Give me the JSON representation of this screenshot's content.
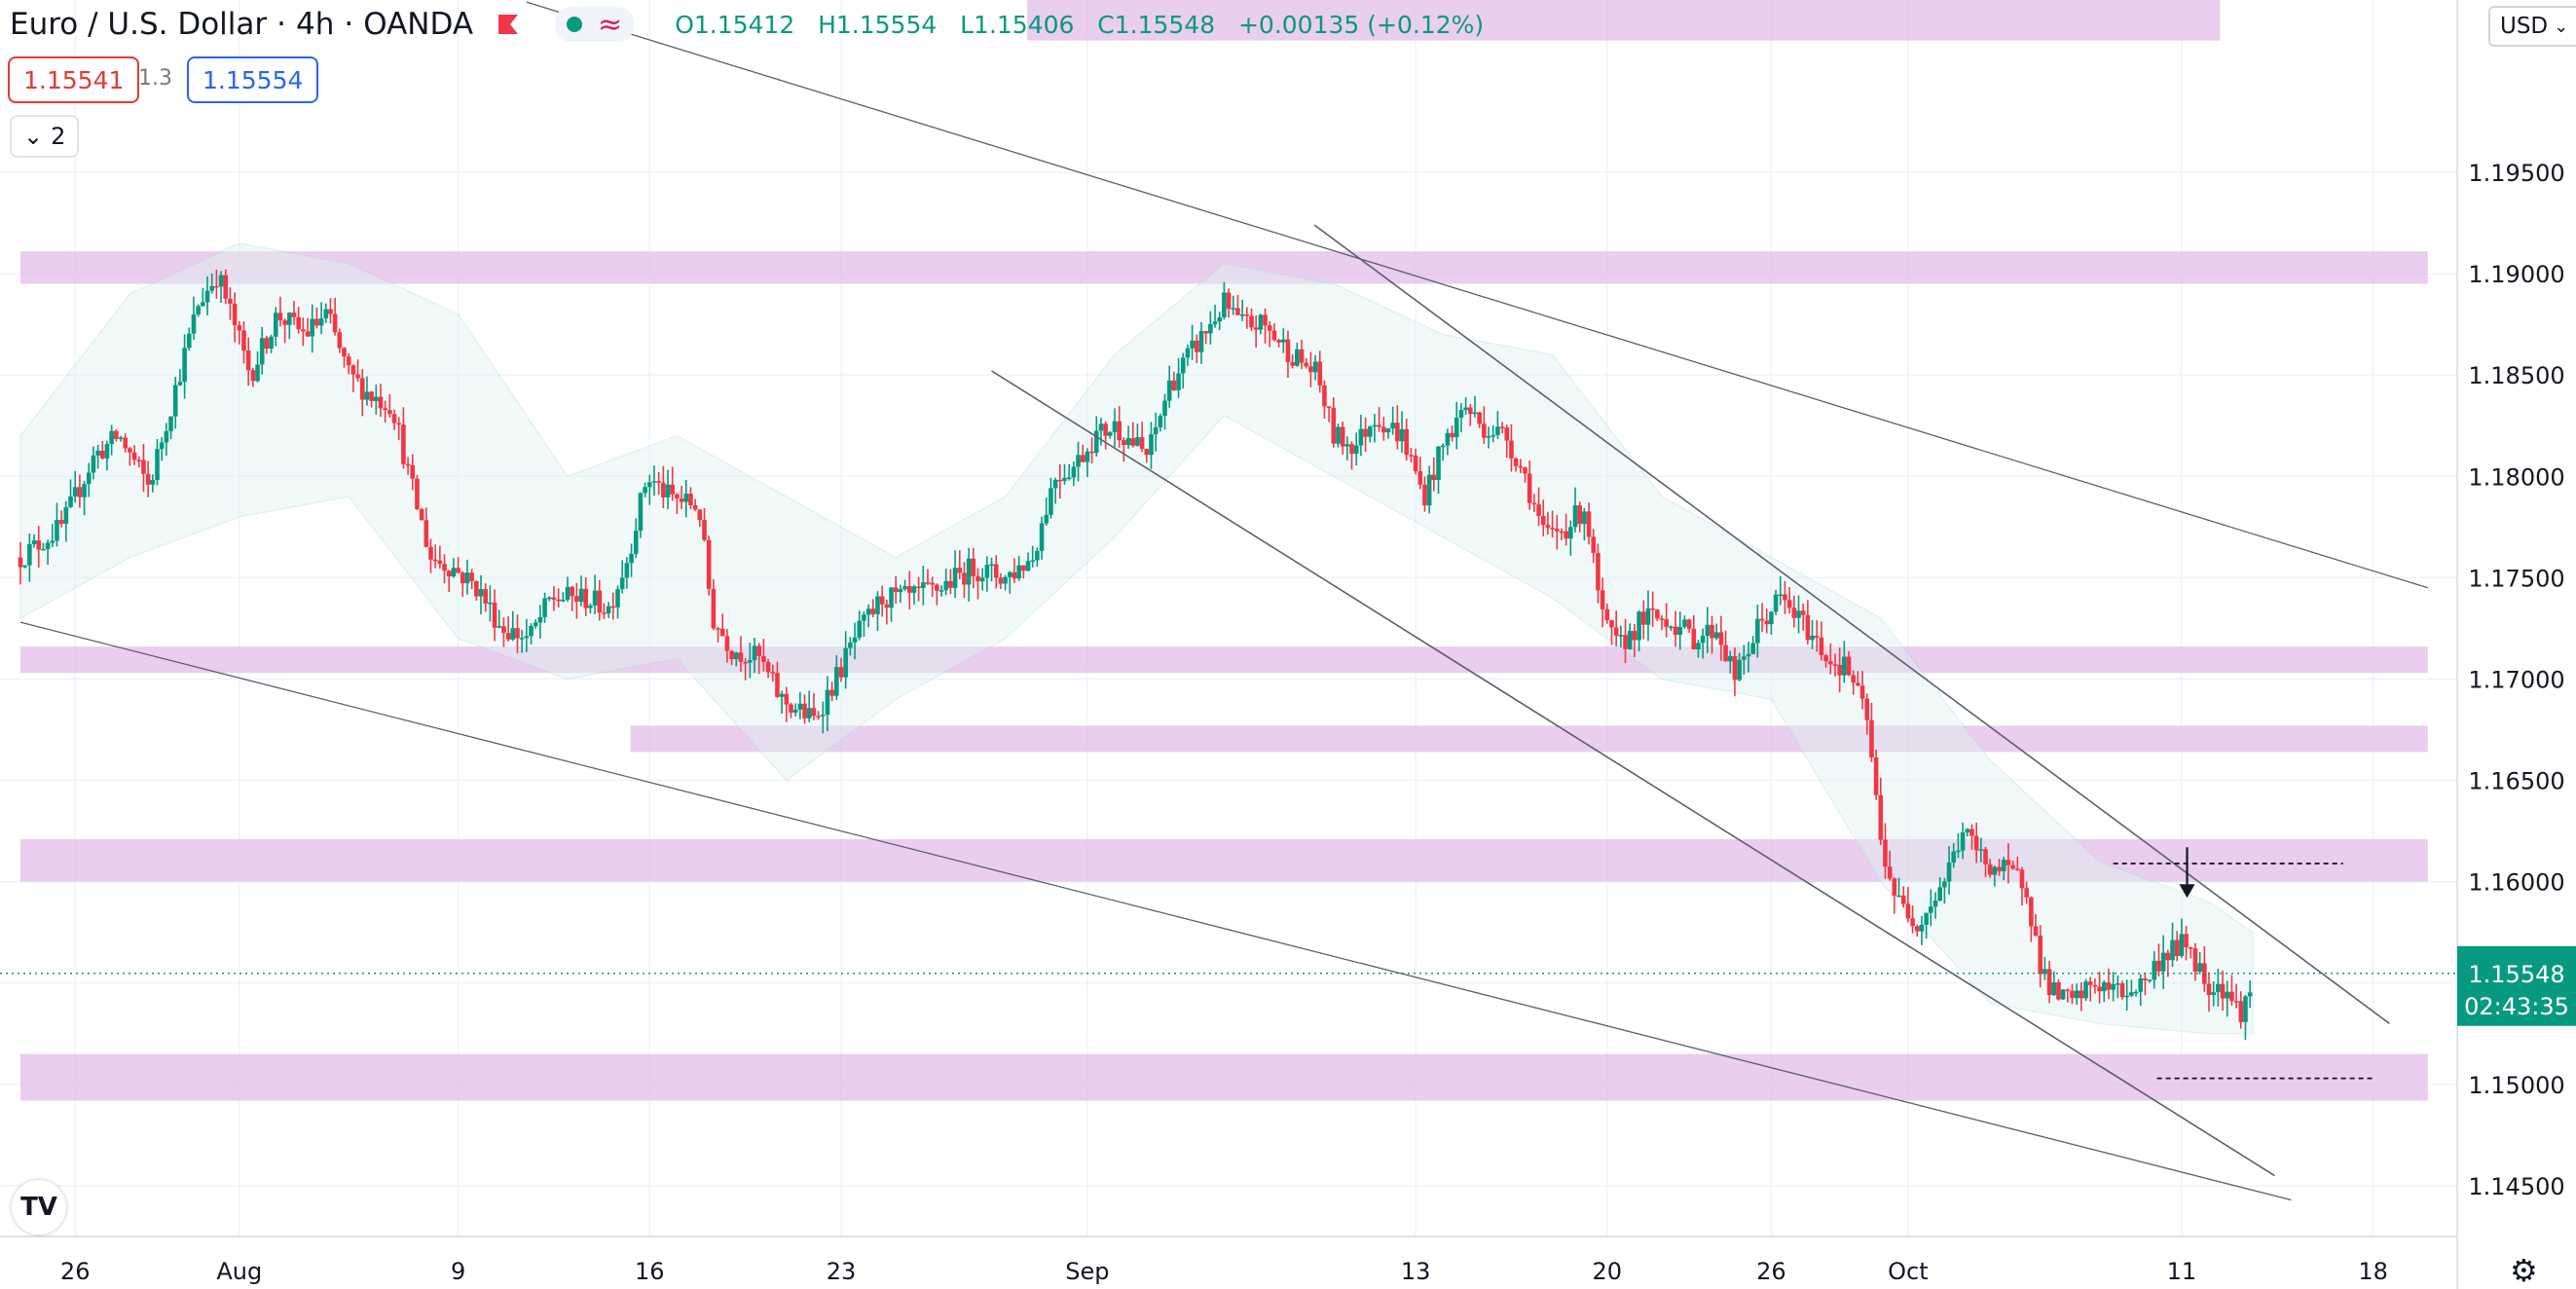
{
  "header": {
    "symbol": "Euro / U.S. Dollar",
    "interval": "4h",
    "exchange": "OANDA",
    "ohlc": {
      "o": "O1.15412",
      "h": "H1.15554",
      "l": "L1.15406",
      "c": "C1.15548",
      "change": "+0.00135 (+0.12%)"
    },
    "sell_price": "1.15541",
    "spread": "1.3",
    "buy_price": "1.15554",
    "indicators_count": "2",
    "currency": "USD",
    "flag_icon": "flag-icon",
    "logo_text": "TV"
  },
  "colors": {
    "up": "#089981",
    "down": "#f23645",
    "zone": "#e1bee7",
    "band": "#e0f2f1",
    "price_label_bg": "#089981"
  },
  "chart_data": {
    "type": "candlestick",
    "symbol": "EURUSD",
    "timeframe": "4h",
    "ylim": [
      1.1425,
      1.2035
    ],
    "yticks": [
      "1.14500",
      "1.15000",
      "1.15500",
      "1.16000",
      "1.16500",
      "1.17000",
      "1.17500",
      "1.18000",
      "1.18500",
      "1.19000",
      "1.19500"
    ],
    "xticks": [
      {
        "label": "26",
        "day": -6
      },
      {
        "label": "Aug",
        "day": 0
      },
      {
        "label": "9",
        "day": 8
      },
      {
        "label": "16",
        "day": 15
      },
      {
        "label": "23",
        "day": 22
      },
      {
        "label": "Sep",
        "day": 31
      },
      {
        "label": "13",
        "day": 43
      },
      {
        "label": "20",
        "day": 50
      },
      {
        "label": "26",
        "day": 56
      },
      {
        "label": "Oct",
        "day": 61
      },
      {
        "label": "11",
        "day": 71
      },
      {
        "label": "18",
        "day": 78
      }
    ],
    "last_price": "1.15548",
    "countdown": "02:43:35",
    "path": [
      [
        -8,
        1.176
      ],
      [
        -6.5,
        1.1775
      ],
      [
        -5.3,
        1.181
      ],
      [
        -4.4,
        1.182
      ],
      [
        -3.3,
        1.1795
      ],
      [
        -2.2,
        1.185
      ],
      [
        -1.5,
        1.1885
      ],
      [
        -0.8,
        1.19
      ],
      [
        -0.3,
        1.188
      ],
      [
        0.4,
        1.185
      ],
      [
        1.4,
        1.188
      ],
      [
        2.4,
        1.187
      ],
      [
        3.2,
        1.188
      ],
      [
        4.0,
        1.185
      ],
      [
        4.8,
        1.184
      ],
      [
        5.6,
        1.1835
      ],
      [
        6.2,
        1.18
      ],
      [
        7.0,
        1.176
      ],
      [
        7.8,
        1.1755
      ],
      [
        8.7,
        1.1745
      ],
      [
        9.6,
        1.1725
      ],
      [
        10.6,
        1.172
      ],
      [
        11.4,
        1.174
      ],
      [
        12.6,
        1.174
      ],
      [
        13.5,
        1.1735
      ],
      [
        14.2,
        1.176
      ],
      [
        14.9,
        1.18
      ],
      [
        15.7,
        1.179
      ],
      [
        16.8,
        1.1785
      ],
      [
        17.3,
        1.173
      ],
      [
        18.0,
        1.1715
      ],
      [
        19.0,
        1.171
      ],
      [
        19.8,
        1.169
      ],
      [
        21.0,
        1.168
      ],
      [
        21.8,
        1.17
      ],
      [
        22.5,
        1.172
      ],
      [
        23.5,
        1.174
      ],
      [
        24.5,
        1.174
      ],
      [
        25.6,
        1.1745
      ],
      [
        26.8,
        1.1755
      ],
      [
        28.0,
        1.175
      ],
      [
        29.0,
        1.176
      ],
      [
        29.8,
        1.18
      ],
      [
        30.5,
        1.1805
      ],
      [
        31.3,
        1.182
      ],
      [
        32.0,
        1.1825
      ],
      [
        33.2,
        1.181
      ],
      [
        34.0,
        1.1845
      ],
      [
        35.0,
        1.1865
      ],
      [
        36.0,
        1.1885
      ],
      [
        36.6,
        1.1875
      ],
      [
        37.4,
        1.1875
      ],
      [
        38.5,
        1.186
      ],
      [
        39.4,
        1.185
      ],
      [
        40.0,
        1.182
      ],
      [
        40.8,
        1.1815
      ],
      [
        41.5,
        1.183
      ],
      [
        42.5,
        1.182
      ],
      [
        43.3,
        1.179
      ],
      [
        44.0,
        1.1815
      ],
      [
        44.8,
        1.1835
      ],
      [
        45.4,
        1.1825
      ],
      [
        46.3,
        1.182
      ],
      [
        47.0,
        1.18
      ],
      [
        47.7,
        1.177
      ],
      [
        48.5,
        1.1775
      ],
      [
        49.2,
        1.1785
      ],
      [
        49.8,
        1.173
      ],
      [
        50.4,
        1.1715
      ],
      [
        51.3,
        1.173
      ],
      [
        52.2,
        1.173
      ],
      [
        53.2,
        1.172
      ],
      [
        54.0,
        1.1725
      ],
      [
        54.7,
        1.17
      ],
      [
        55.5,
        1.1725
      ],
      [
        56.3,
        1.174
      ],
      [
        57.3,
        1.1725
      ],
      [
        58.1,
        1.171
      ],
      [
        58.8,
        1.1705
      ],
      [
        59.5,
        1.168
      ],
      [
        60.0,
        1.162
      ],
      [
        60.6,
        1.159
      ],
      [
        61.4,
        1.158
      ],
      [
        62.3,
        1.16
      ],
      [
        63.0,
        1.1625
      ],
      [
        63.8,
        1.161
      ],
      [
        64.5,
        1.1605
      ],
      [
        65.3,
        1.16
      ],
      [
        65.8,
        1.156
      ],
      [
        66.3,
        1.1545
      ],
      [
        67.0,
        1.154
      ],
      [
        67.8,
        1.155
      ],
      [
        68.8,
        1.1545
      ],
      [
        69.6,
        1.155
      ],
      [
        70.4,
        1.1565
      ],
      [
        71.2,
        1.157
      ],
      [
        71.9,
        1.155
      ],
      [
        72.6,
        1.1548
      ],
      [
        73.1,
        1.1535
      ],
      [
        73.6,
        1.1548
      ]
    ],
    "series": [
      {
        "name": "Bollinger upper",
        "values": [
          [
            -8,
            1.182
          ],
          [
            -4,
            1.189
          ],
          [
            0,
            1.1915
          ],
          [
            4,
            1.1905
          ],
          [
            8,
            1.188
          ],
          [
            12,
            1.18
          ],
          [
            16,
            1.182
          ],
          [
            20,
            1.179
          ],
          [
            24,
            1.176
          ],
          [
            28,
            1.179
          ],
          [
            32,
            1.186
          ],
          [
            36,
            1.1905
          ],
          [
            40,
            1.1895
          ],
          [
            44,
            1.187
          ],
          [
            48,
            1.186
          ],
          [
            52,
            1.179
          ],
          [
            56,
            1.176
          ],
          [
            60,
            1.173
          ],
          [
            64,
            1.166
          ],
          [
            68,
            1.161
          ],
          [
            72,
            1.159
          ],
          [
            73.6,
            1.1575
          ]
        ]
      },
      {
        "name": "Bollinger lower",
        "values": [
          [
            -8,
            1.173
          ],
          [
            -4,
            1.176
          ],
          [
            0,
            1.178
          ],
          [
            4,
            1.179
          ],
          [
            8,
            1.172
          ],
          [
            12,
            1.17
          ],
          [
            16,
            1.171
          ],
          [
            20,
            1.165
          ],
          [
            24,
            1.169
          ],
          [
            28,
            1.172
          ],
          [
            32,
            1.177
          ],
          [
            36,
            1.183
          ],
          [
            40,
            1.18
          ],
          [
            44,
            1.177
          ],
          [
            48,
            1.174
          ],
          [
            52,
            1.17
          ],
          [
            56,
            1.169
          ],
          [
            60,
            1.16
          ],
          [
            64,
            1.154
          ],
          [
            68,
            1.153
          ],
          [
            72,
            1.1525
          ],
          [
            73.6,
            1.1525
          ]
        ]
      }
    ],
    "zones": [
      {
        "y1": 1.1895,
        "y2": 1.1911,
        "from": -8,
        "to": 80
      },
      {
        "y1": 1.1703,
        "y2": 1.1716,
        "from": -8,
        "to": 80
      },
      {
        "y1": 1.1664,
        "y2": 1.1677,
        "from": 14.3,
        "to": 80
      },
      {
        "y1": 1.16,
        "y2": 1.1621,
        "from": -8,
        "to": 80
      },
      {
        "y1": 1.1492,
        "y2": 1.1515,
        "from": -8,
        "to": 80
      },
      {
        "y1": 1.2015,
        "y2": 1.2035,
        "from": 28.8,
        "to": 72.4
      }
    ],
    "trendlines": [
      {
        "from": [
          10.5,
          1.2034
        ],
        "to": [
          80,
          1.1745
        ],
        "width": 1.3
      },
      {
        "from": [
          -8,
          1.1728
        ],
        "to": [
          75,
          1.1443
        ],
        "width": 1.3
      },
      {
        "from": [
          39.3,
          1.1924
        ],
        "to": [
          78.6,
          1.153
        ],
        "width": 1.6
      },
      {
        "from": [
          27.5,
          1.1852
        ],
        "to": [
          74.4,
          1.1455
        ],
        "width": 1.6
      }
    ],
    "dashed_levels": [
      {
        "y": 1.1609,
        "from": 68.5,
        "to": 76.9
      },
      {
        "y": 1.1503,
        "from": 70.1,
        "to": 78.1
      }
    ],
    "arrow": {
      "x": 71.2,
      "y_from": 1.1617,
      "y_to": 1.1592
    }
  }
}
